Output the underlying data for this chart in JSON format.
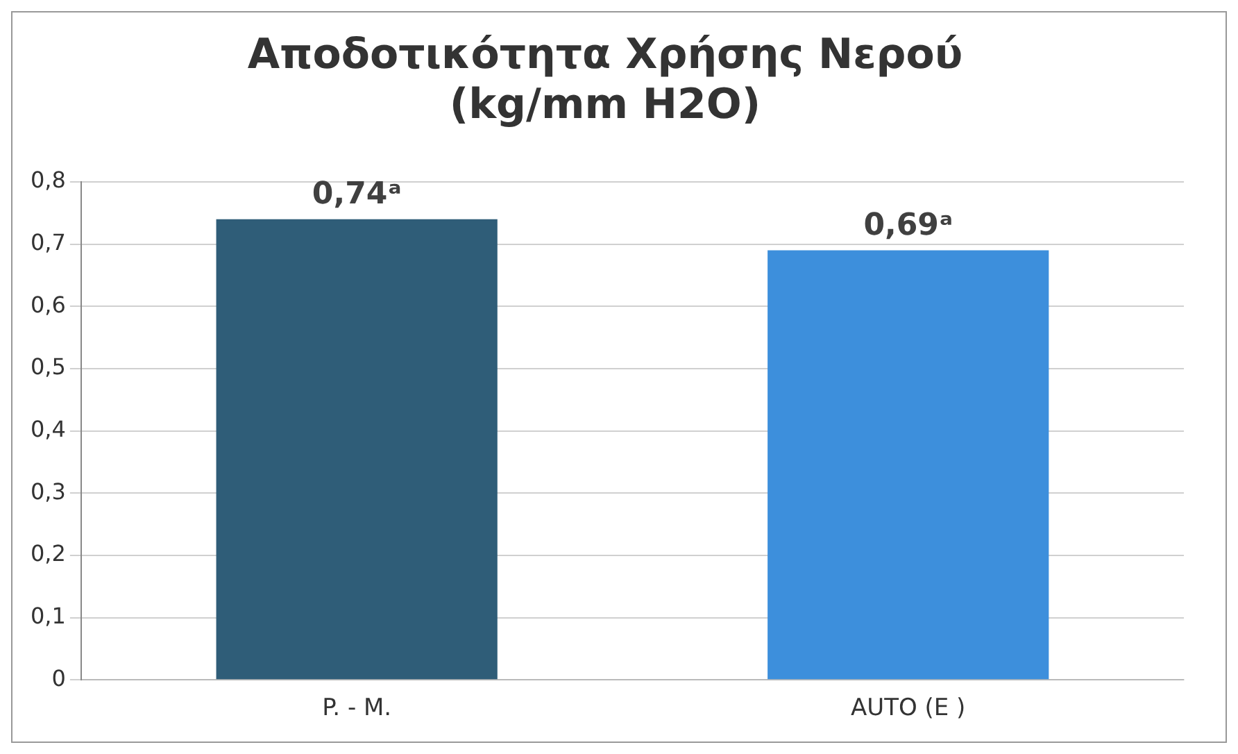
{
  "chart_data": {
    "type": "bar",
    "title": "Αποδοτικότητα Χρήσης Νερού\n(kg/mm H2O)",
    "categories": [
      "P. - M.",
      "AUTO (E )"
    ],
    "values": [
      0.74,
      0.69
    ],
    "colors": [
      "#2f5d78",
      "#3d8fdc"
    ],
    "value_labels": [
      "0,74ᵃ",
      "0,69ᵃ"
    ],
    "ylim": [
      0,
      0.8
    ],
    "yticks": [
      0,
      {
        "value": 0.1,
        "label": "0,1"
      },
      {
        "value": 0.2,
        "label": "0,2"
      },
      {
        "value": 0.3,
        "label": "0,3"
      },
      {
        "value": 0.4,
        "label": "0,4"
      },
      {
        "value": 0.5,
        "label": "0,5"
      },
      {
        "value": 0.6,
        "label": "0,6"
      },
      {
        "value": 0.7,
        "label": "0,7"
      },
      {
        "value": 0.8,
        "label": "0,8"
      }
    ],
    "grid": "y",
    "legend": false
  }
}
